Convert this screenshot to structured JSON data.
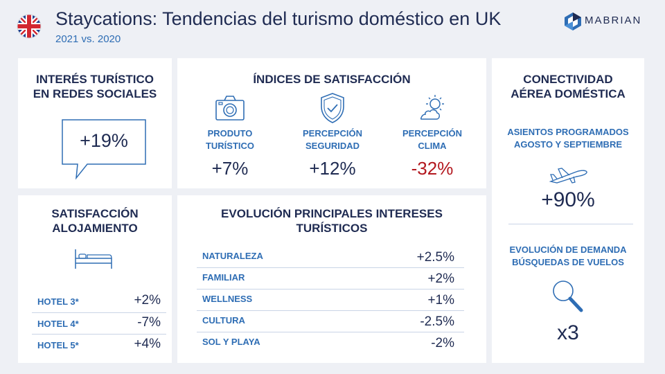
{
  "header": {
    "title": "Staycations: Tendencias del turismo doméstico en UK",
    "subtitle": "2021 vs. 2020",
    "logo_text": "MABRIAN",
    "flag_icon": "uk-flag-icon"
  },
  "social": {
    "title_line1": "INTERÉS TURÍSTICO",
    "title_line2": "EN  REDES SOCIALES",
    "value": "+19%"
  },
  "satisfaction": {
    "title": "ÍNDICES DE SATISFACCIÓN",
    "items": [
      {
        "icon": "camera-icon",
        "label_line1": "PRODUTO",
        "label_line2": "TURÍSTICO",
        "value": "+7%"
      },
      {
        "icon": "shield-check-icon",
        "label_line1": "PERCEPCIÓN",
        "label_line2": "SEGURIDAD",
        "value": "+12%"
      },
      {
        "icon": "sun-cloud-icon",
        "label_line1": "PERCEPCIÓN",
        "label_line2": "CLIMA",
        "value": "-32%"
      }
    ]
  },
  "accommodation": {
    "title_line1": "SATISFACCIÓN",
    "title_line2": "ALOJAMIENTO",
    "rows": [
      {
        "label": "HOTEL 3*",
        "value": "+2%"
      },
      {
        "label": "HOTEL 4*",
        "value": "-7%"
      },
      {
        "label": "HOTEL 5*",
        "value": "+4%"
      }
    ]
  },
  "interests": {
    "title_line1": "EVOLUCIÓN PRINCIPALES INTERESES",
    "title_line2": "TURÍSTICOS",
    "rows": [
      {
        "label": "NATURALEZA",
        "value": "+2.5%"
      },
      {
        "label": "FAMILIAR",
        "value": "+2%"
      },
      {
        "label": "WELLNESS",
        "value": "+1%"
      },
      {
        "label": "CULTURA",
        "value": "-2.5%"
      },
      {
        "label": "SOL Y PLAYA",
        "value": "-2%"
      }
    ]
  },
  "connectivity": {
    "title_line1": "CONECTIVIDAD",
    "title_line2": "AÉREA DOMÉSTICA",
    "seats_line1": "ASIENTOS PROGRAMADOS",
    "seats_line2": "AGOSTO Y SEPTIEMBRE",
    "seats_value": "+90%",
    "demand_line1": "EVOLUCIÓN DE DEMANDA",
    "demand_line2": "BÚSQUEDAS DE VUELOS",
    "demand_value": "x3"
  },
  "colors": {
    "navy": "#1f2b52",
    "accent_blue": "#2e6db4",
    "negative_red": "#b3181f",
    "background": "#eef0f5"
  }
}
